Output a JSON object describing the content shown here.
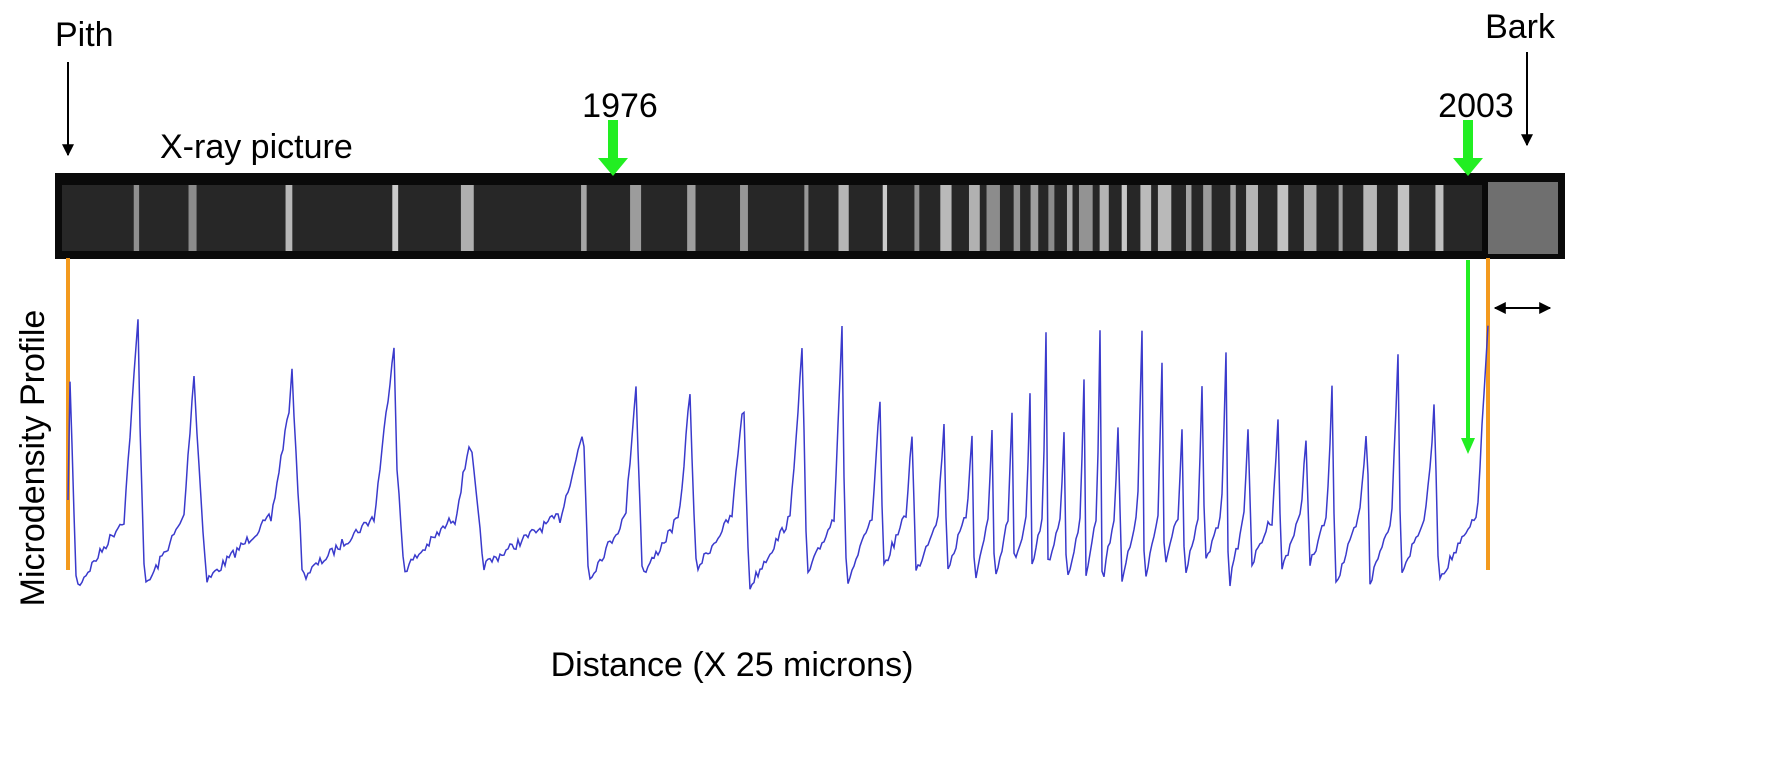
{
  "labels": {
    "pith": "Pith",
    "bark": "Bark",
    "year_start": "1976",
    "year_end": "2003",
    "xray": "X-ray picture",
    "profile": "Microdensity Profile",
    "distance": "Distance (X 25 microns)"
  }
}
